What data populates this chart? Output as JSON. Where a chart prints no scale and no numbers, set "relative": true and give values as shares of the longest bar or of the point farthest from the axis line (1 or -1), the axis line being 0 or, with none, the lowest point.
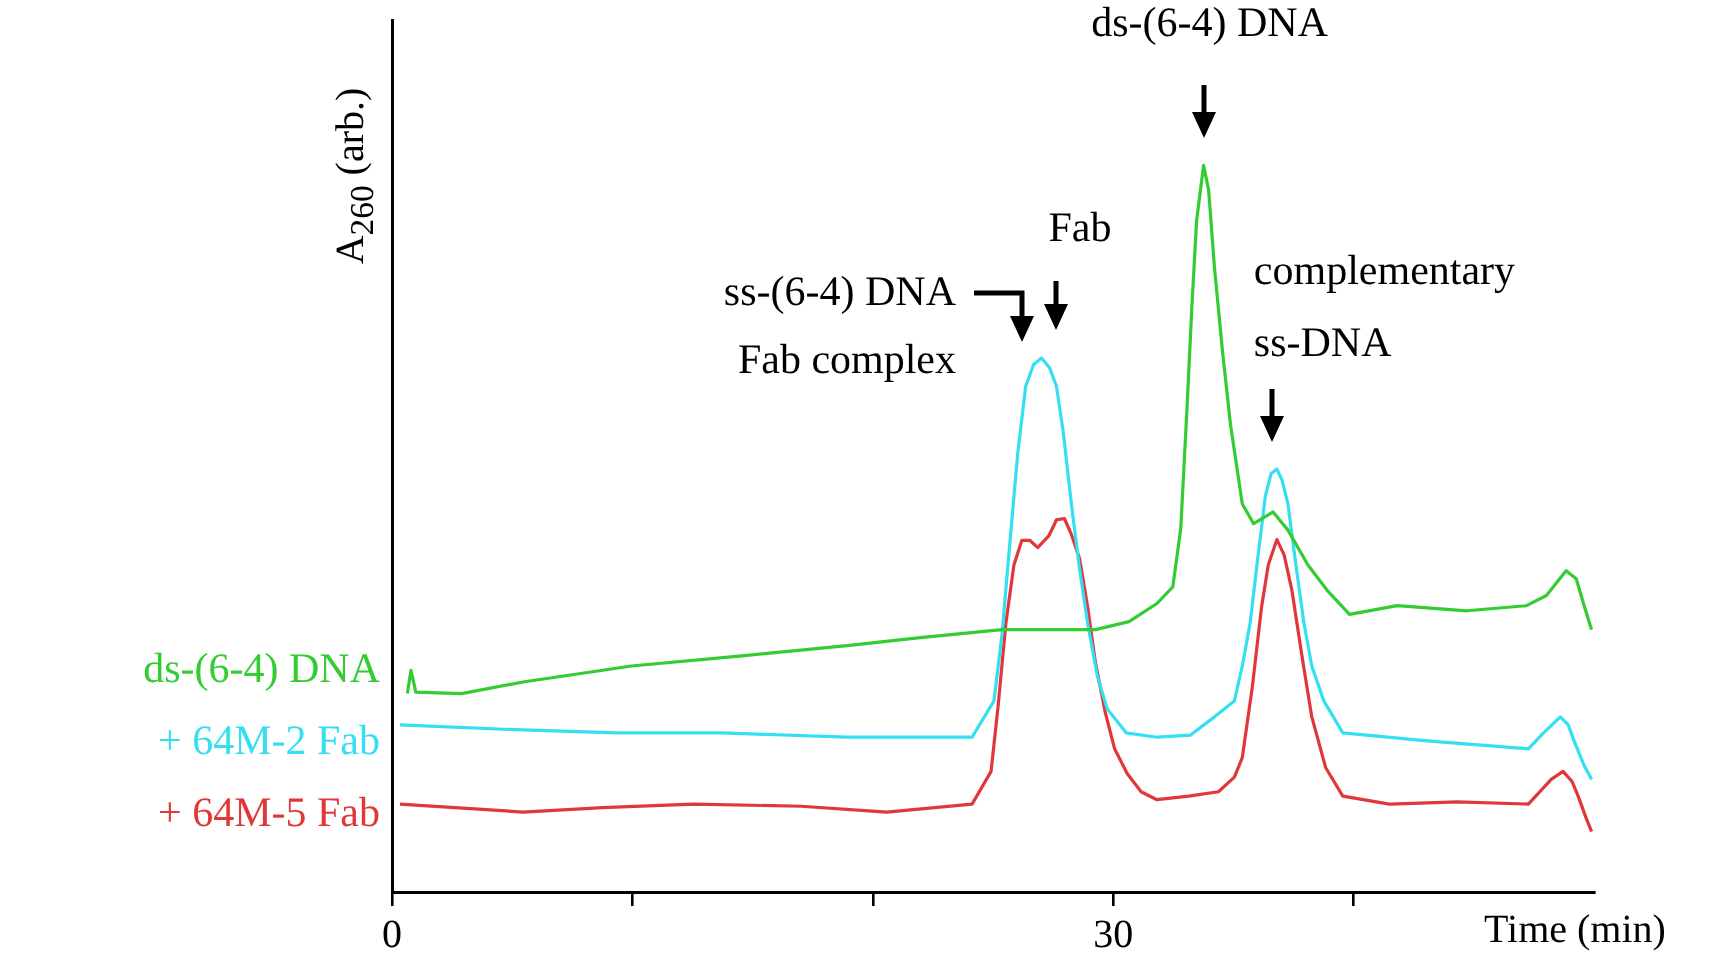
{
  "chart_data": {
    "type": "line",
    "relative": true,
    "xlabel": "Time (min)",
    "ylabel": "A$_{260}$ (arb.)",
    "xlim": [
      0,
      50
    ],
    "xticks": [
      0,
      {
        "value": 10,
        "label": null
      },
      {
        "value": 20,
        "label": null
      },
      30,
      {
        "value": 40,
        "label": null
      }
    ],
    "legend": "left",
    "marker": "none",
    "annotations": [
      "ss-(6-4) DNA\nFab complex",
      "Fab",
      {
        "text": "ds-(6-4) DNA",
        "x": 33.76,
        "y": 1.0
      },
      {
        "text": "complementary\nss-DNA",
        "x": 36.6,
        "y": 0.58
      }
    ],
    "series": [
      {
        "name": "ds-(6-4) DNA",
        "color": "#33cc33",
        "x": [
          0.64,
          0.79,
          0.99,
          2.89,
          5.45,
          9.96,
          14.55,
          18.93,
          21.98,
          25.37,
          29.26,
          30.66,
          31.82,
          32.48,
          32.81,
          33.06,
          33.27,
          33.47,
          33.76,
          33.97,
          34.21,
          34.55,
          34.88,
          35.37,
          35.84,
          36.65,
          37.27,
          38.1,
          38.93,
          39.83,
          41.82,
          44.71,
          47.19,
          48.02,
          48.84,
          49.26,
          49.59,
          49.9
        ],
        "values": [
          0.273,
          0.305,
          0.275,
          0.273,
          0.289,
          0.311,
          0.325,
          0.339,
          0.35,
          0.361,
          0.361,
          0.372,
          0.397,
          0.42,
          0.5,
          0.659,
          0.804,
          0.924,
          1.0,
          0.966,
          0.86,
          0.743,
          0.643,
          0.534,
          0.507,
          0.523,
          0.498,
          0.45,
          0.414,
          0.382,
          0.394,
          0.387,
          0.394,
          0.408,
          0.442,
          0.431,
          0.394,
          0.361
        ]
      },
      {
        "name": "+ 64M-2 Fab",
        "color": "#33dff0",
        "x": [
          0.33,
          4.63,
          9.34,
          13.72,
          18.93,
          24.13,
          25.04,
          25.37,
          25.7,
          26.03,
          26.36,
          26.69,
          27.02,
          27.36,
          27.64,
          27.93,
          28.26,
          28.6,
          28.93,
          29.34,
          29.75,
          30.54,
          31.82,
          33.22,
          34.21,
          35.04,
          35.37,
          35.7,
          36.03,
          36.33,
          36.57,
          36.81,
          37.02,
          37.27,
          37.6,
          37.93,
          38.26,
          38.76,
          39.55,
          43.06,
          47.27,
          47.9,
          48.6,
          48.93,
          49.17,
          49.59,
          49.9
        ],
        "values": [
          0.23,
          0.224,
          0.219,
          0.219,
          0.213,
          0.213,
          0.263,
          0.353,
          0.48,
          0.604,
          0.696,
          0.726,
          0.735,
          0.721,
          0.696,
          0.631,
          0.534,
          0.445,
          0.371,
          0.297,
          0.252,
          0.219,
          0.213,
          0.216,
          0.241,
          0.263,
          0.311,
          0.371,
          0.464,
          0.545,
          0.576,
          0.582,
          0.567,
          0.534,
          0.45,
          0.371,
          0.311,
          0.263,
          0.219,
          0.208,
          0.197,
          0.219,
          0.241,
          0.23,
          0.208,
          0.174,
          0.155
        ]
      },
      {
        "name": "+ 64M-5 Fab",
        "color": "#e03838",
        "x": [
          0.33,
          5.45,
          8.76,
          12.53,
          17.02,
          20.58,
          24.13,
          24.92,
          25.21,
          25.54,
          25.87,
          26.2,
          26.53,
          26.86,
          27.32,
          27.64,
          27.97,
          28.26,
          28.6,
          28.93,
          29.26,
          29.67,
          30.06,
          30.58,
          31.16,
          31.82,
          33.14,
          34.38,
          35.04,
          35.37,
          35.79,
          36.17,
          36.45,
          36.81,
          37.11,
          37.44,
          37.85,
          38.26,
          38.84,
          39.55,
          41.49,
          44.3,
          47.27,
          48.22,
          48.71,
          49.09,
          49.34,
          49.67,
          49.9
        ],
        "values": [
          0.121,
          0.11,
          0.116,
          0.121,
          0.118,
          0.11,
          0.121,
          0.166,
          0.255,
          0.371,
          0.45,
          0.484,
          0.484,
          0.474,
          0.49,
          0.512,
          0.514,
          0.492,
          0.459,
          0.394,
          0.316,
          0.247,
          0.197,
          0.163,
          0.138,
          0.127,
          0.132,
          0.138,
          0.158,
          0.185,
          0.283,
          0.392,
          0.45,
          0.485,
          0.464,
          0.414,
          0.325,
          0.241,
          0.171,
          0.132,
          0.121,
          0.124,
          0.121,
          0.155,
          0.166,
          0.152,
          0.132,
          0.102,
          0.083
        ]
      }
    ]
  }
}
